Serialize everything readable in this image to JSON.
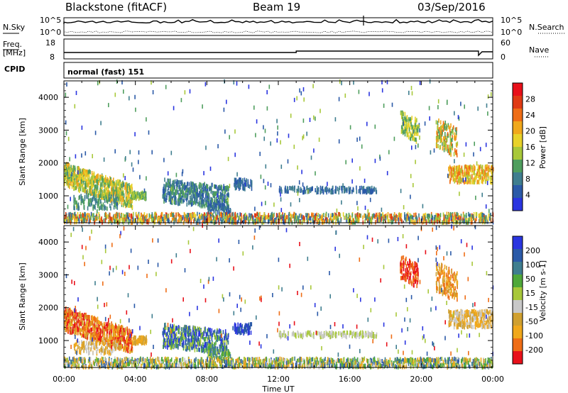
{
  "header": {
    "radar": "Blackstone (fitACF)",
    "beam": "Beam 19",
    "date": "03/Sep/2016"
  },
  "summary_panel": {
    "nsky_label": "N.Sky",
    "nsearch_label": "N.Search",
    "nsky_ticks": [
      "10^5",
      "10^0"
    ],
    "nsearch_ticks": [
      "10^5",
      "10^0"
    ],
    "freq_label_1": "Freq.",
    "freq_label_2": "[MHz]",
    "freq_ticks": [
      "18",
      "8"
    ],
    "nave_label": "Nave",
    "nave_ticks": [
      "60",
      "0"
    ],
    "cpid_label": "CPID",
    "cpid_value": "normal (fast) 151"
  },
  "colors": {
    "power": [
      "#2a35e0",
      "#2b5aa8",
      "#3f7e8f",
      "#4f9e5e",
      "#a8c83a",
      "#e8d22a",
      "#f0a81c",
      "#ee6d16",
      "#e03a14",
      "#e8101a"
    ],
    "velocity": [
      "#e8101a",
      "#ee6d16",
      "#f0a81c",
      "#d0a030",
      "#c8c8c8",
      "#a8c83a",
      "#4fa83a",
      "#3f7e8f",
      "#2b5aa8",
      "#2a35e0"
    ]
  },
  "chart_data": [
    {
      "type": "heatmap",
      "name": "power",
      "ylabel": "Slant Range [km]",
      "y_ticks": [
        1000,
        2000,
        3000,
        4000
      ],
      "ylim": [
        180,
        4500
      ],
      "xlim_hours": [
        0,
        24
      ],
      "colorbar_label": "Power [dB]",
      "colorbar_ticks": [
        "4",
        "8",
        "12",
        "16",
        "20",
        "24",
        "28"
      ],
      "colorbar_range": [
        0,
        30
      ]
    },
    {
      "type": "heatmap",
      "name": "velocity",
      "ylabel": "Slant Range [km]",
      "y_ticks": [
        1000,
        2000,
        3000,
        4000
      ],
      "ylim": [
        180,
        4500
      ],
      "xlim_hours": [
        0,
        24
      ],
      "xlabel": "Time UT",
      "x_ticks": [
        "00:00",
        "04:00",
        "08:00",
        "12:00",
        "16:00",
        "20:00",
        "00:00"
      ],
      "colorbar_label": "Velocity [m s-1]",
      "colorbar_ticks": [
        "-200",
        "-100",
        "-50",
        "-15",
        "15",
        "50",
        "100",
        "200"
      ]
    }
  ]
}
